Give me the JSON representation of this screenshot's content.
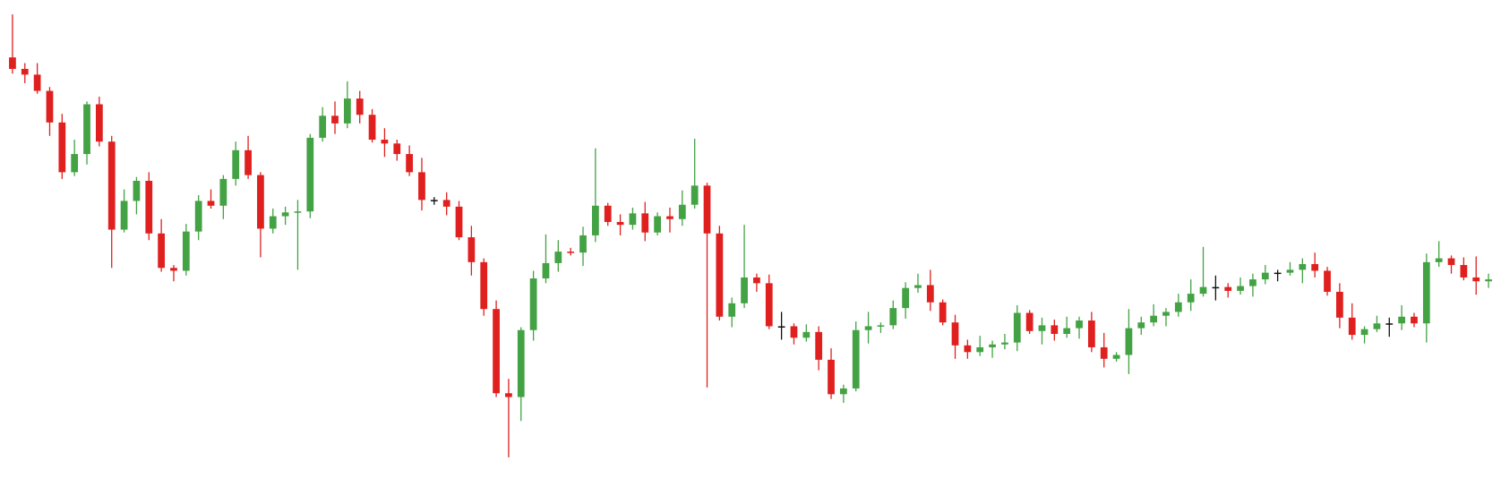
{
  "chart_data": {
    "type": "candlestick",
    "up_color": "#43a243",
    "down_color": "#e0201f",
    "doji_color": "#111111",
    "ylim": [
      0,
      509
    ],
    "open": [
      449,
      437,
      431,
      414,
      381,
      329,
      348,
      400,
      361,
      269,
      299,
      320,
      265,
      229,
      226,
      267,
      299,
      294,
      322,
      352,
      326,
      270,
      283,
      287,
      288,
      365,
      388,
      380,
      406,
      389,
      363,
      359,
      348,
      329,
      300,
      300,
      293,
      261,
      235,
      186,
      98,
      94,
      164,
      218,
      234,
      246,
      245,
      263,
      294,
      277,
      274,
      286,
      266,
      283,
      280,
      295,
      315,
      265,
      178,
      192,
      219,
      213,
      168,
      168,
      156,
      162,
      133,
      97,
      103,
      164,
      168,
      169,
      187,
      208,
      211,
      193,
      172,
      148,
      141,
      146,
      149,
      151,
      182,
      163,
      169,
      160,
      166,
      174,
      146,
      134,
      138,
      166,
      172,
      179,
      183,
      193,
      202,
      209,
      209,
      205,
      210,
      217,
      224,
      224,
      227,
      233,
      226,
      204,
      177,
      159,
      165,
      171,
      171,
      178,
      171,
      235,
      239,
      232,
      219,
      215
    ],
    "high": [
      494,
      443,
      443,
      418,
      390,
      363,
      403,
      408,
      367,
      311,
      324,
      329,
      280,
      232,
      275,
      305,
      311,
      326,
      361,
      367,
      329,
      291,
      293,
      300,
      369,
      397,
      403,
      424,
      414,
      395,
      375,
      363,
      357,
      344,
      303,
      308,
      299,
      273,
      239,
      195,
      113,
      167,
      226,
      264,
      258,
      250,
      272,
      354,
      297,
      285,
      292,
      298,
      287,
      292,
      310,
      364,
      318,
      273,
      198,
      274,
      223,
      222,
      183,
      171,
      170,
      168,
      145,
      107,
      173,
      183,
      172,
      195,
      214,
      223,
      227,
      196,
      180,
      154,
      158,
      153,
      160,
      190,
      185,
      177,
      175,
      178,
      178,
      183,
      161,
      141,
      186,
      178,
      191,
      187,
      202,
      217,
      251,
      221,
      213,
      219,
      223,
      232,
      227,
      235,
      239,
      245,
      230,
      213,
      192,
      168,
      179,
      177,
      190,
      182,
      244,
      257,
      242,
      240,
      241,
      223
    ],
    "low": [
      432,
      422,
      411,
      367,
      322,
      325,
      337,
      356,
      229,
      266,
      285,
      258,
      225,
      215,
      221,
      258,
      291,
      280,
      315,
      322,
      240,
      265,
      274,
      227,
      281,
      361,
      369,
      375,
      380,
      360,
      345,
      341,
      325,
      289,
      295,
      284,
      258,
      221,
      179,
      94,
      31,
      69,
      153,
      213,
      225,
      242,
      231,
      256,
      273,
      263,
      269,
      257,
      263,
      266,
      273,
      291,
      104,
      174,
      167,
      187,
      204,
      165,
      154,
      149,
      152,
      122,
      92,
      88,
      100,
      150,
      161,
      165,
      176,
      203,
      184,
      169,
      134,
      134,
      137,
      135,
      144,
      142,
      160,
      149,
      153,
      156,
      155,
      141,
      125,
      131,
      118,
      159,
      168,
      168,
      178,
      184,
      199,
      195,
      198,
      201,
      199,
      212,
      215,
      221,
      213,
      219,
      200,
      166,
      154,
      150,
      162,
      157,
      164,
      167,
      151,
      230,
      223,
      216,
      201,
      208
    ],
    "close": [
      437,
      431,
      414,
      381,
      329,
      348,
      400,
      361,
      269,
      299,
      320,
      265,
      229,
      226,
      267,
      299,
      294,
      322,
      352,
      326,
      270,
      283,
      287,
      288,
      365,
      388,
      380,
      406,
      389,
      363,
      359,
      348,
      329,
      300,
      300,
      293,
      261,
      235,
      186,
      98,
      94,
      164,
      218,
      234,
      246,
      245,
      263,
      294,
      277,
      274,
      286,
      266,
      283,
      280,
      295,
      315,
      265,
      178,
      192,
      219,
      213,
      168,
      168,
      156,
      162,
      133,
      97,
      103,
      164,
      168,
      169,
      187,
      208,
      211,
      193,
      172,
      148,
      141,
      146,
      149,
      151,
      182,
      163,
      169,
      160,
      166,
      174,
      146,
      134,
      138,
      166,
      172,
      179,
      183,
      193,
      202,
      209,
      209,
      205,
      210,
      217,
      224,
      224,
      227,
      233,
      226,
      204,
      177,
      159,
      165,
      171,
      171,
      178,
      171,
      235,
      239,
      232,
      219,
      215,
      217
    ]
  }
}
